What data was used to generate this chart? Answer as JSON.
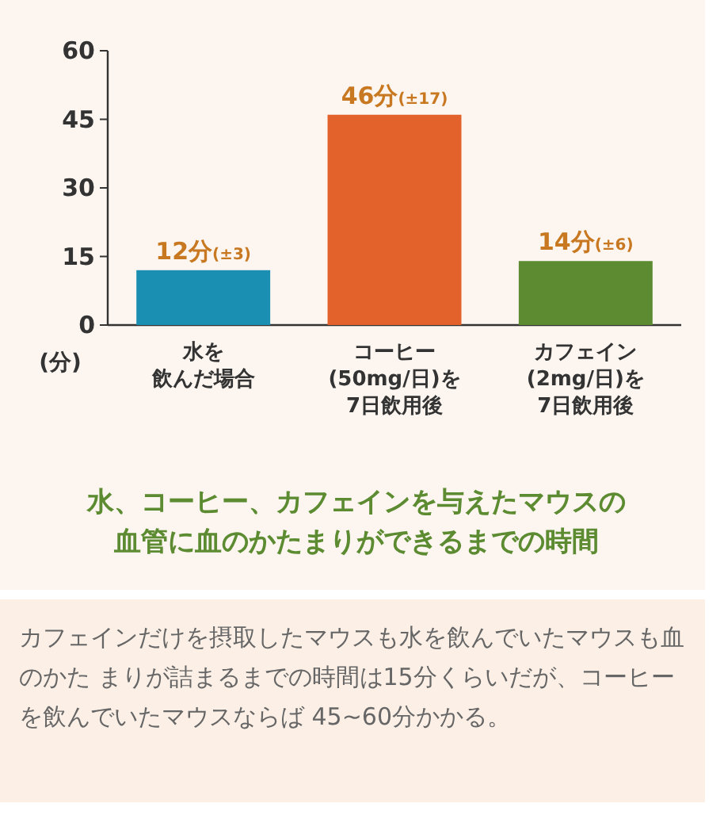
{
  "chart_data": {
    "type": "bar",
    "title": "水、コーヒー、カフェインを与えたマウスの血管に血のかたまりができるまでの時間",
    "ylabel": "(分)",
    "categories": [
      "水を飲んだ場合",
      "コーヒー(50mg/日)を7日飲用後",
      "カフェイン(2mg/日)を7日飲用後"
    ],
    "values": [
      12,
      46,
      14
    ],
    "colors": [
      "#1b8fb2",
      "#e3622b",
      "#5c8b31"
    ],
    "value_labels": [
      "12分(±3)",
      "46分(±17)",
      "14分(±6)"
    ],
    "ylim": [
      0,
      60
    ],
    "yticks": [
      0,
      15,
      30,
      45,
      60
    ],
    "annotations": [
      "カフェインだけを摂取したマウスも水を飲んでいたマウスも血のかた まりが詰まるまでの時間は15分くらいだが、コーヒーを飲んでいたマウスならば 45~60分かかる。"
    ]
  }
}
